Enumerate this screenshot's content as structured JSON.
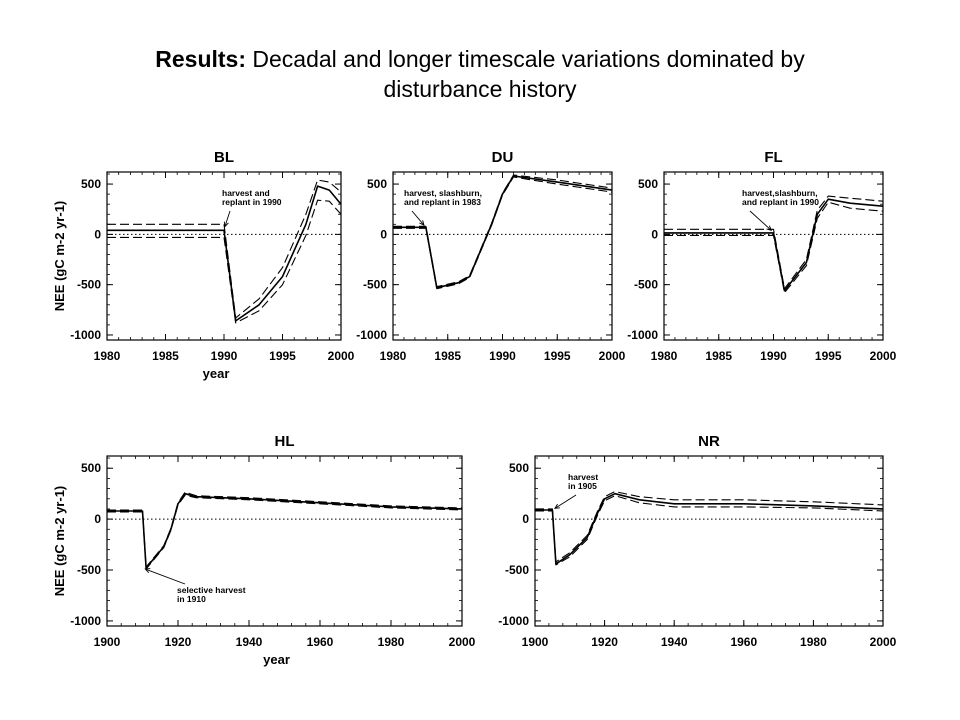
{
  "slide": {
    "title_bold": "Results:",
    "title_rest": " Decadal and longer timescale variations dominated by",
    "title_line2": "disturbance history"
  },
  "chart_data": [
    {
      "type": "line",
      "title": "BL",
      "xlabel": "year",
      "ylabel": "NEE (gC m-2 yr-1)",
      "xlim": [
        1980,
        2000
      ],
      "ylim": [
        -1050,
        620
      ],
      "xticks": [
        1980,
        1985,
        1990,
        1995,
        2000
      ],
      "yticks": [
        -1000,
        -500,
        0,
        500
      ],
      "annotations": [
        {
          "lines": [
            "harvest and",
            "replant in 1990"
          ],
          "x": 1990,
          "y": 50
        }
      ],
      "series": [
        {
          "style": "solid",
          "x": [
            1980,
            1990,
            1991,
            1993,
            1995,
            1997,
            1998,
            1999,
            2000
          ],
          "y": [
            40,
            40,
            -860,
            -700,
            -420,
            100,
            480,
            440,
            300
          ]
        },
        {
          "style": "dashed",
          "x": [
            1980,
            1990,
            1991,
            1993,
            1995,
            1997,
            1998,
            1999,
            2000
          ],
          "y": [
            100,
            100,
            -830,
            -640,
            -330,
            200,
            540,
            520,
            420
          ]
        },
        {
          "style": "dashed",
          "x": [
            1980,
            1990,
            1991,
            1993,
            1995,
            1997,
            1998,
            1999,
            2000
          ],
          "y": [
            -30,
            -30,
            -880,
            -760,
            -500,
            -10,
            340,
            330,
            200
          ]
        }
      ]
    },
    {
      "type": "line",
      "title": "DU",
      "xlabel": "",
      "ylabel": "",
      "xlim": [
        1980,
        2000
      ],
      "ylim": [
        -1050,
        620
      ],
      "xticks": [
        1980,
        1985,
        1990,
        1995,
        2000
      ],
      "yticks": [
        -1000,
        -500,
        0,
        500
      ],
      "annotations": [
        {
          "lines": [
            "harvest, slashburn,",
            "and replant in 1983"
          ],
          "x": 1983,
          "y": 70
        }
      ],
      "series": [
        {
          "style": "solid",
          "x": [
            1980,
            1983,
            1984,
            1986,
            1987,
            1989,
            1990,
            1991,
            1995,
            2000
          ],
          "y": [
            70,
            70,
            -530,
            -480,
            -420,
            100,
            400,
            580,
            520,
            440
          ]
        },
        {
          "style": "dashed",
          "x": [
            1980,
            1983,
            1984,
            1986,
            1987,
            1989,
            1990,
            1991,
            1995,
            2000
          ],
          "y": [
            80,
            80,
            -520,
            -470,
            -410,
            110,
            410,
            590,
            540,
            460
          ]
        },
        {
          "style": "dashed",
          "x": [
            1980,
            1983,
            1984,
            1986,
            1987,
            1989,
            1990,
            1991,
            1995,
            2000
          ],
          "y": [
            60,
            60,
            -540,
            -490,
            -430,
            90,
            390,
            570,
            500,
            420
          ]
        }
      ]
    },
    {
      "type": "line",
      "title": "FL",
      "xlabel": "",
      "ylabel": "",
      "xlim": [
        1980,
        2000
      ],
      "ylim": [
        -1050,
        620
      ],
      "xticks": [
        1980,
        1985,
        1990,
        1995,
        2000
      ],
      "yticks": [
        -1000,
        -500,
        0,
        500
      ],
      "annotations": [
        {
          "lines": [
            "harvest,slashburn,",
            "and replant in 1990"
          ],
          "x": 1990,
          "y": 20
        }
      ],
      "series": [
        {
          "style": "solid",
          "x": [
            1980,
            1990,
            1991,
            1993,
            1994,
            1995,
            1997,
            2000
          ],
          "y": [
            15,
            15,
            -560,
            -280,
            200,
            350,
            310,
            280
          ]
        },
        {
          "style": "dashed",
          "x": [
            1980,
            1990,
            1991,
            1993,
            1994,
            1995,
            1997,
            2000
          ],
          "y": [
            50,
            50,
            -540,
            -250,
            240,
            380,
            360,
            330
          ]
        },
        {
          "style": "dashed",
          "x": [
            1980,
            1990,
            1991,
            1993,
            1994,
            1995,
            1997,
            2000
          ],
          "y": [
            -10,
            -10,
            -580,
            -310,
            160,
            320,
            260,
            230
          ]
        }
      ]
    },
    {
      "type": "line",
      "title": "HL",
      "xlabel": "year",
      "ylabel": "NEE (gC m-2 yr-1)",
      "xlim": [
        1900,
        2000
      ],
      "ylim": [
        -1050,
        620
      ],
      "xticks": [
        1900,
        1920,
        1940,
        1960,
        1980,
        2000
      ],
      "yticks": [
        -1000,
        -500,
        0,
        500
      ],
      "annotations": [
        {
          "lines": [
            "selective harvest",
            "in 1910"
          ],
          "x": 1910,
          "y": -480
        }
      ],
      "series": [
        {
          "style": "solid",
          "x": [
            1900,
            1910,
            1911,
            1916,
            1918,
            1920,
            1922,
            1925,
            1940,
            1960,
            1980,
            2000
          ],
          "y": [
            80,
            80,
            -480,
            -270,
            -100,
            150,
            250,
            220,
            200,
            160,
            120,
            100
          ]
        },
        {
          "style": "dashed",
          "x": [
            1900,
            1910,
            1911,
            1916,
            1918,
            1920,
            1922,
            1925,
            1940,
            1960,
            1980,
            2000
          ],
          "y": [
            90,
            90,
            -470,
            -260,
            -90,
            160,
            265,
            230,
            210,
            170,
            130,
            110
          ]
        },
        {
          "style": "dashed",
          "x": [
            1900,
            1910,
            1911,
            1916,
            1918,
            1920,
            1922,
            1925,
            1940,
            1960,
            1980,
            2000
          ],
          "y": [
            70,
            70,
            -490,
            -280,
            -110,
            140,
            235,
            210,
            190,
            150,
            110,
            90
          ]
        }
      ]
    },
    {
      "type": "line",
      "title": "NR",
      "xlabel": "",
      "ylabel": "",
      "xlim": [
        1900,
        2000
      ],
      "ylim": [
        -1050,
        620
      ],
      "xticks": [
        1900,
        1920,
        1940,
        1960,
        1980,
        2000
      ],
      "yticks": [
        -1000,
        -500,
        0,
        500
      ],
      "annotations": [
        {
          "lines": [
            "harvest",
            "in 1905"
          ],
          "x": 1905,
          "y": 90
        }
      ],
      "series": [
        {
          "style": "solid",
          "x": [
            1900,
            1905,
            1906,
            1910,
            1915,
            1918,
            1920,
            1923,
            1930,
            1940,
            1960,
            1980,
            2000
          ],
          "y": [
            90,
            90,
            -440,
            -350,
            -180,
            60,
            200,
            250,
            190,
            150,
            150,
            130,
            100
          ]
        },
        {
          "style": "dashed",
          "x": [
            1900,
            1905,
            1906,
            1910,
            1915,
            1918,
            1920,
            1923,
            1930,
            1940,
            1960,
            1980,
            2000
          ],
          "y": [
            100,
            100,
            -420,
            -330,
            -160,
            80,
            220,
            270,
            220,
            190,
            190,
            170,
            140
          ]
        },
        {
          "style": "dashed",
          "x": [
            1900,
            1905,
            1906,
            1910,
            1915,
            1918,
            1920,
            1923,
            1930,
            1940,
            1960,
            1980,
            2000
          ],
          "y": [
            80,
            80,
            -450,
            -370,
            -200,
            40,
            180,
            230,
            160,
            120,
            120,
            110,
            80
          ]
        }
      ]
    }
  ]
}
